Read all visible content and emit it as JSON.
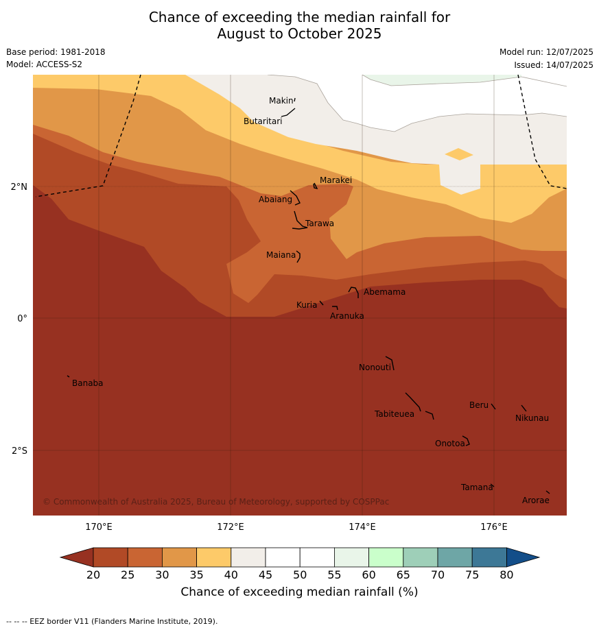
{
  "header": {
    "title_line1": "Chance of exceeding the median rainfall for",
    "title_line2": "August to October 2025",
    "base_period": "Base period: 1981-2018",
    "model": "Model: ACCESS-S2",
    "model_run": "Model run: 12/07/2025",
    "issued": "Issued: 14/07/2025"
  },
  "map": {
    "lon_labels": [
      "170°E",
      "172°E",
      "174°E",
      "176°E"
    ],
    "lat_labels": [
      "2°N",
      "0°",
      "2°S"
    ],
    "copyright": "© Commonwealth of Australia 2025, Bureau of Meteorology, supported by COSPPac",
    "places": [
      "Makin",
      "Butaritari",
      "Marakei",
      "Abaiang",
      "Tarawa",
      "Maiana",
      "Abemama",
      "Kuria",
      "Aranuka",
      "Nonouti",
      "Banaba",
      "Beru",
      "Nikunau",
      "Tabiteuea",
      "Onotoa",
      "Tamana",
      "Arorae"
    ],
    "fill_colors": {
      "lt20": "#973121",
      "20_25": "#b14a26",
      "25_30": "#c96533",
      "30_35": "#e19748",
      "35_40": "#fdca69",
      "40_45": "#f2eee9",
      "45_55": "#ffffff",
      "55_60": "#e9f5e9"
    }
  },
  "colorbar": {
    "ticks": [
      "20",
      "25",
      "30",
      "35",
      "40",
      "45",
      "50",
      "55",
      "60",
      "65",
      "70",
      "75",
      "80"
    ],
    "colors": [
      "#b14a26",
      "#c96533",
      "#e19748",
      "#fdca69",
      "#f2eee9",
      "#ffffff",
      "#ffffff",
      "#e9f5e9",
      "#caffcb",
      "#9ecfb8",
      "#6ea6a6",
      "#3d7896"
    ],
    "under_color": "#973121",
    "over_color": "#134e89",
    "label": "Chance of exceeding median rainfall (%)"
  },
  "footnote": "--  --  -- EEZ border V11 (Flanders Marine Institute, 2019)."
}
